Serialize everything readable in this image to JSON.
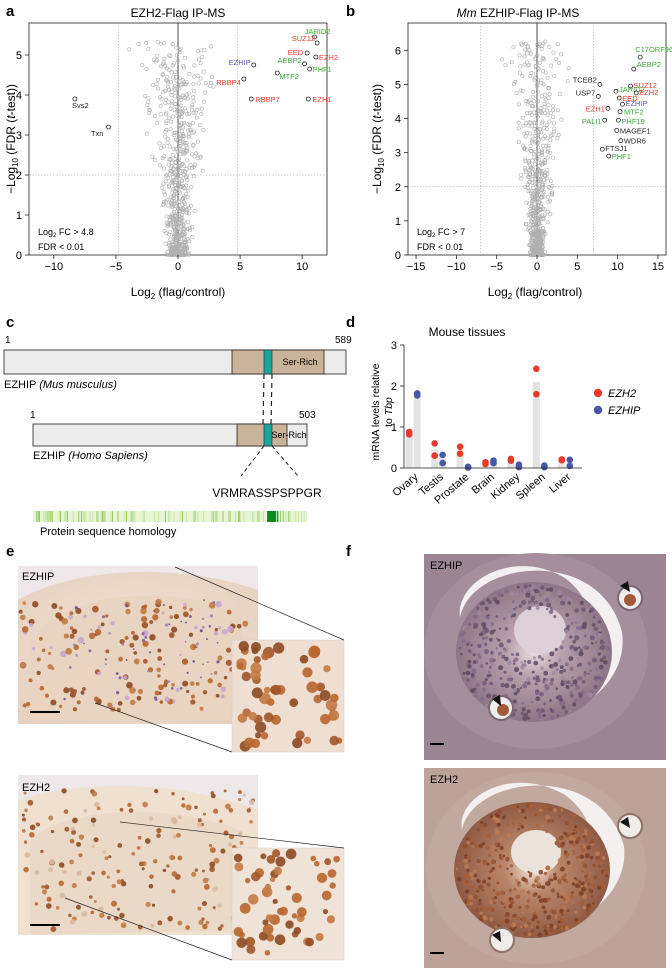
{
  "panels": {
    "a": {
      "letter": "a",
      "title": "EZH2-Flag IP-MS",
      "xlabel": "Log2 (flag/control)",
      "ylabel": "−Log10 (FDR (t-test))",
      "xticks": [
        "−10",
        "−5",
        "0",
        "5",
        "10"
      ],
      "yticks": [
        "0",
        "1",
        "2",
        "3",
        "4",
        "5"
      ],
      "thresh_fc": "Log2 FC > 4.8",
      "thresh_fdr": "FDR < 0.01",
      "colors": {
        "red": "#e8392a",
        "green": "#3aa935",
        "blue": "#5a5bb5",
        "black": "#231f20",
        "grey": "#b0b0b0"
      }
    },
    "b": {
      "letter": "b",
      "title_em": "Mm",
      "title": "EZHIP-Flag IP-MS",
      "xlabel": "Log2 (flag/control)",
      "ylabel": "−Log10 (FDR (t-test))",
      "xticks": [
        "−15",
        "−10",
        "−5",
        "0",
        "5",
        "10",
        "15"
      ],
      "yticks": [
        "0",
        "1",
        "2",
        "3",
        "4",
        "5",
        "6"
      ],
      "thresh_fc": "Log2 FC > 7",
      "thresh_fdr": "FDR < 0.01"
    },
    "c": {
      "letter": "c",
      "mouse_start": "1",
      "mouse_end": "589",
      "mouse_label": "EZHIP",
      "mouse_species": "(Mus musculus)",
      "human_start": "1",
      "human_end": "503",
      "human_label": "EZHIP",
      "human_species": "(Homo Sapiens)",
      "ser_rich": "Ser-Rich",
      "motif": "VRMRASSPSPPGR",
      "homology_label": "Protein sequence homology"
    },
    "d": {
      "letter": "d",
      "title": "Mouse tissues",
      "ylabel_1": "mRNA levels relative",
      "ylabel_2": "to",
      "ylabel_em": "Tbp",
      "yticks": [
        "0",
        "1",
        "2",
        "3"
      ],
      "legend": [
        {
          "name": "EZH2",
          "color": "#e8392a"
        },
        {
          "name": "EZHIP",
          "color": "#4a56a6"
        }
      ]
    },
    "e": {
      "letter": "e",
      "top_label": "EZHIP",
      "bottom_label": "EZH2"
    },
    "f": {
      "letter": "f",
      "top_label": "EZHIP",
      "bottom_label": "EZH2"
    }
  },
  "chart_data": [
    {
      "type": "scatter",
      "title": "EZH2-Flag IP-MS",
      "xlabel": "Log2 (flag/control)",
      "ylabel": "−Log10 (FDR (t-test))",
      "xlim": [
        -12,
        12
      ],
      "ylim": [
        0,
        5.8
      ],
      "labeled_points": [
        {
          "label": "JARID2",
          "x": 11.0,
          "y": 5.45,
          "color": "green"
        },
        {
          "label": "SUZ12",
          "x": 11.2,
          "y": 5.3,
          "color": "red"
        },
        {
          "label": "EED",
          "x": 10.4,
          "y": 5.05,
          "color": "red"
        },
        {
          "label": "EZH2",
          "x": 11.1,
          "y": 4.95,
          "color": "red"
        },
        {
          "label": "AEBP2",
          "x": 10.2,
          "y": 4.78,
          "color": "green"
        },
        {
          "label": "PHF1",
          "x": 10.6,
          "y": 4.65,
          "color": "green"
        },
        {
          "label": "EZHIP",
          "x": 6.1,
          "y": 4.75,
          "color": "blue"
        },
        {
          "label": "MTF2",
          "x": 8.0,
          "y": 4.55,
          "color": "green"
        },
        {
          "label": "RBBP4",
          "x": 5.3,
          "y": 4.4,
          "color": "red"
        },
        {
          "label": "RBBP7",
          "x": 5.9,
          "y": 3.9,
          "color": "red"
        },
        {
          "label": "EZH1",
          "x": 10.5,
          "y": 3.9,
          "color": "red"
        },
        {
          "label": "Svs2",
          "x": -8.3,
          "y": 3.9,
          "color": "black"
        },
        {
          "label": "Txn",
          "x": -5.6,
          "y": 3.2,
          "color": "black"
        }
      ]
    },
    {
      "type": "scatter",
      "title": "Mm EZHIP-Flag IP-MS",
      "xlabel": "Log2 (flag/control)",
      "ylabel": "−Log10 (FDR (t-test))",
      "xlim": [
        -16,
        16
      ],
      "ylim": [
        0,
        6.8
      ],
      "labeled_points": [
        {
          "label": "C17ORF96",
          "x": 12.8,
          "y": 5.8,
          "color": "green"
        },
        {
          "label": "AEBP2",
          "x": 12.0,
          "y": 5.45,
          "color": "green"
        },
        {
          "label": "TCEB2",
          "x": 7.8,
          "y": 5.0,
          "color": "black"
        },
        {
          "label": "SUZ12",
          "x": 11.6,
          "y": 4.95,
          "color": "red"
        },
        {
          "label": "JARID2",
          "x": 9.8,
          "y": 4.8,
          "color": "green"
        },
        {
          "label": "USP7",
          "x": 7.6,
          "y": 4.65,
          "color": "black"
        },
        {
          "label": "EZH2",
          "x": 12.3,
          "y": 4.75,
          "color": "red"
        },
        {
          "label": "EED",
          "x": 10.2,
          "y": 4.6,
          "color": "red"
        },
        {
          "label": "EZHIP",
          "x": 10.6,
          "y": 4.42,
          "color": "blue"
        },
        {
          "label": "EZH1",
          "x": 8.8,
          "y": 4.3,
          "color": "red"
        },
        {
          "label": "MTF2",
          "x": 10.3,
          "y": 4.2,
          "color": "green"
        },
        {
          "label": "PALI1",
          "x": 8.4,
          "y": 3.95,
          "color": "green"
        },
        {
          "label": "PHF19",
          "x": 10.1,
          "y": 3.95,
          "color": "green"
        },
        {
          "label": "MAGEF1",
          "x": 9.9,
          "y": 3.65,
          "color": "black"
        },
        {
          "label": "WDR6",
          "x": 10.4,
          "y": 3.35,
          "color": "black"
        },
        {
          "label": "FTSJ1",
          "x": 8.1,
          "y": 3.1,
          "color": "black"
        },
        {
          "label": "PHF1",
          "x": 8.9,
          "y": 2.9,
          "color": "green"
        }
      ]
    },
    {
      "type": "bar",
      "title": "Mouse tissues",
      "ylabel": "mRNA levels relative to Tbp",
      "ylim": [
        0,
        3
      ],
      "categories": [
        "Ovary",
        "Testis",
        "Prostate",
        "Brain",
        "Kidney",
        "Spleen",
        "Liver"
      ],
      "series": [
        {
          "name": "EZH2",
          "values": [
            0.85,
            0.45,
            0.45,
            0.12,
            0.2,
            2.1,
            0.2
          ],
          "points": [
            [
              0.82,
              0.88
            ],
            [
              0.3,
              0.6
            ],
            [
              0.35,
              0.52
            ],
            [
              0.1,
              0.14
            ],
            [
              0.18,
              0.22
            ],
            [
              1.8,
              2.42
            ],
            [
              0.19,
              0.21
            ]
          ]
        },
        {
          "name": "EZHIP",
          "values": [
            1.8,
            0.25,
            0.02,
            0.15,
            0.05,
            0.04,
            0.13
          ],
          "points": [
            [
              1.77,
              1.82
            ],
            [
              0.12,
              0.32
            ],
            [
              0.01,
              0.03
            ],
            [
              0.12,
              0.18
            ],
            [
              0.02,
              0.08
            ],
            [
              0.02,
              0.06
            ],
            [
              0.05,
              0.2
            ]
          ]
        }
      ]
    }
  ]
}
